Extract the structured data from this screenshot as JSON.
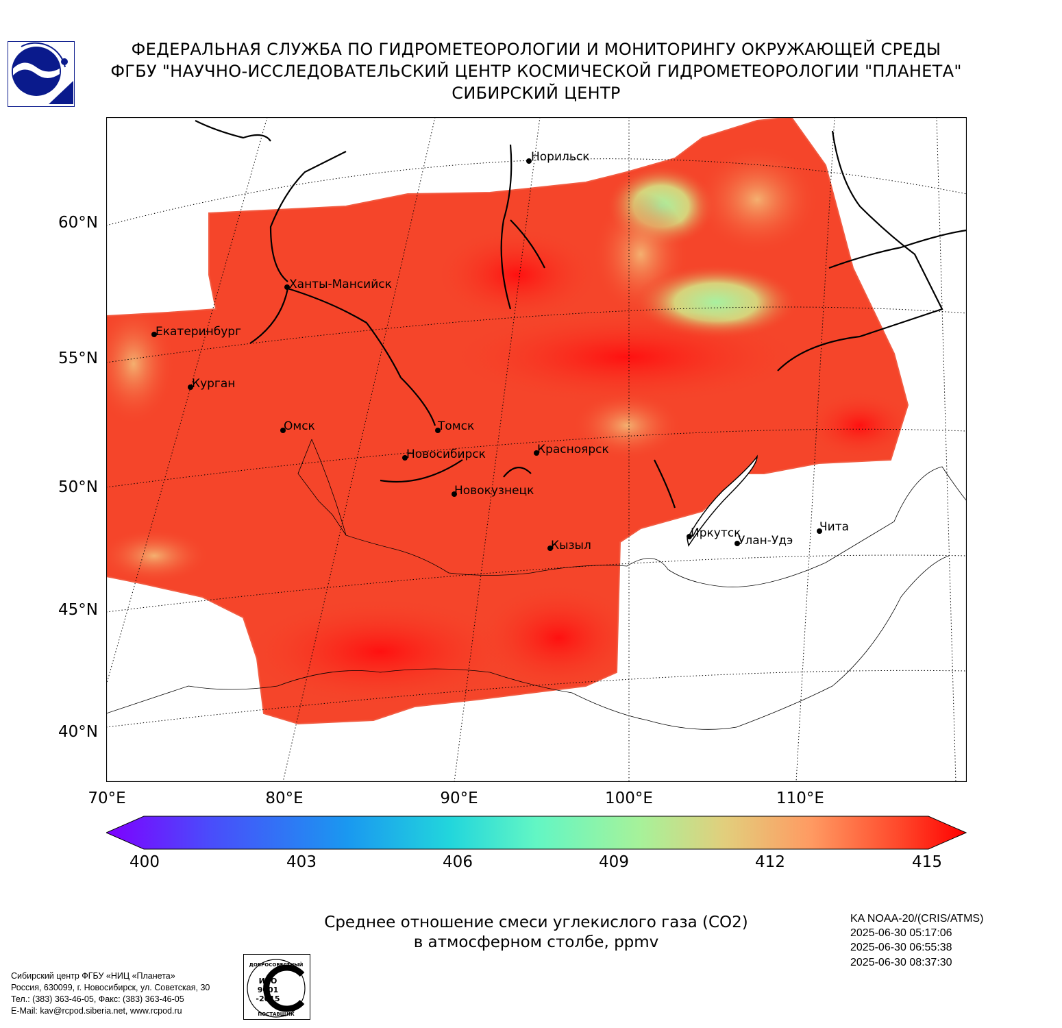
{
  "header": {
    "line1": "ФЕДЕРАЛЬНАЯ СЛУЖБА ПО ГИДРОМЕТЕОРОЛОГИИ И МОНИТОРИНГУ ОКРУЖАЮЩЕЙ СРЕДЫ",
    "line2": "ФГБУ \"НАУЧНО-ИССЛЕДОВАТЕЛЬСКИЙ ЦЕНТР КОСМИЧЕСКОЙ ГИДРОМЕТЕОРОЛОГИИ \"ПЛАНЕТА\"",
    "line3": "СИБИРСКИЙ ЦЕНТР"
  },
  "logo": {
    "icon": "planeta-logo-icon",
    "color": "#0a1a8c"
  },
  "map": {
    "lat_labels": [
      "60°N",
      "55°N",
      "50°N",
      "45°N",
      "40°N"
    ],
    "lon_labels": [
      "70°E",
      "80°E",
      "90°E",
      "100°E",
      "110°E"
    ],
    "cities": [
      {
        "name": "Норильск"
      },
      {
        "name": "Ханты-Мансийск"
      },
      {
        "name": "Екатеринбург"
      },
      {
        "name": "Курган"
      },
      {
        "name": "Омск"
      },
      {
        "name": "Томск"
      },
      {
        "name": "Новосибирск"
      },
      {
        "name": "Красноярск"
      },
      {
        "name": "Новокузнецк"
      },
      {
        "name": "Кызыл"
      },
      {
        "name": "Иркутск"
      },
      {
        "name": "Улан-Удэ"
      },
      {
        "name": "Чита"
      }
    ],
    "colors": {
      "dominant": "#f5452a",
      "max": "#ff1010",
      "low": "#a8f0a0",
      "mid": "#e8c070"
    }
  },
  "colorbar": {
    "ticks": [
      "400",
      "403",
      "406",
      "409",
      "412",
      "415"
    ],
    "min": 400,
    "max": 415,
    "extend": "both",
    "colormap": "rainbow"
  },
  "caption": {
    "line1": "Среднее отношение смеси углекислого газа (CO2)",
    "line2": "в атмосферном столбе, ppmv"
  },
  "satellite": {
    "name": "KA NOAA-20/(CRIS/ATMS)",
    "times": [
      "2025-06-30 05:17:06",
      "2025-06-30 06:55:38",
      "2025-06-30 08:37:30"
    ]
  },
  "footer": {
    "address": [
      "Сибирский центр ФГБУ «НИЦ «Планета»",
      "Россия, 630099, г. Новосибирск, ул. Советская, 30",
      "Тел.: (383) 363-46-05, Факс: (383) 363-46-05",
      "E-Mail: kav@rcpod.siberia.net, www.rcpod.ru"
    ],
    "iso_badge": {
      "top": "ДОБРОСОВЕСТНЫЙ",
      "line1": "ИСО",
      "line2": "9001",
      "line3": "-2015",
      "bottom": "ПОСТАВЩИК"
    }
  }
}
